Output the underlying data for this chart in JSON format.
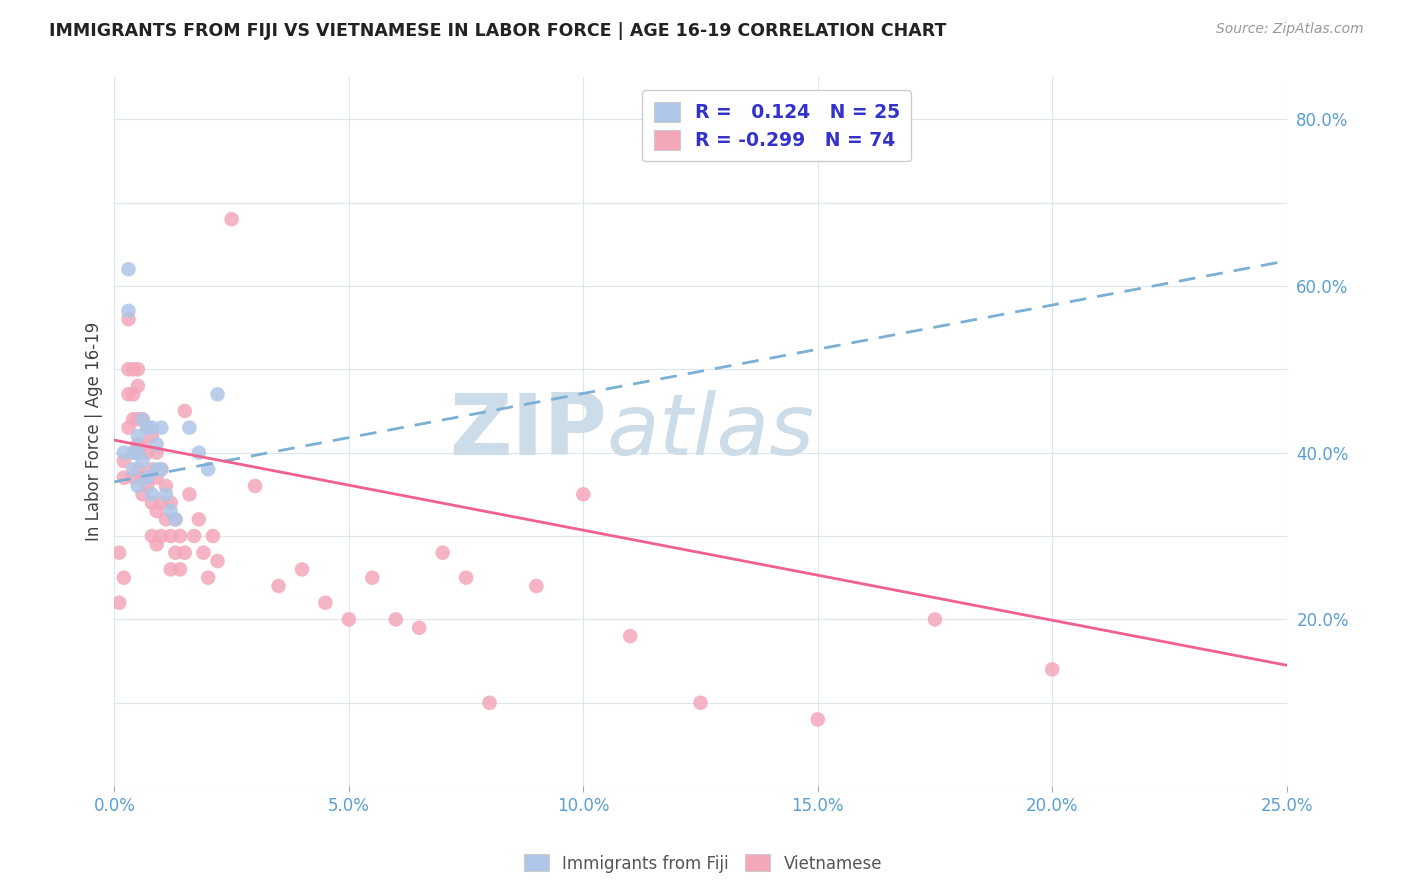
{
  "title": "IMMIGRANTS FROM FIJI VS VIETNAMESE IN LABOR FORCE | AGE 16-19 CORRELATION CHART",
  "source": "Source: ZipAtlas.com",
  "ylabel": "In Labor Force | Age 16-19",
  "xlim": [
    0.0,
    0.25
  ],
  "ylim": [
    0.0,
    0.85
  ],
  "xticks": [
    0.0,
    0.05,
    0.1,
    0.15,
    0.2,
    0.25
  ],
  "xtick_labels": [
    "0.0%",
    "5.0%",
    "10.0%",
    "15.0%",
    "20.0%",
    "25.0%"
  ],
  "ytick_vals": [
    0.2,
    0.4,
    0.6,
    0.8
  ],
  "ytick_labels": [
    "20.0%",
    "40.0%",
    "60.0%",
    "80.0%"
  ],
  "fiji_color": "#aec6e8",
  "viet_color": "#f4a7b9",
  "fiji_line_color": "#7bafd4",
  "viet_line_color": "#f06090",
  "fiji_R": 0.124,
  "fiji_N": 25,
  "viet_R": -0.299,
  "viet_N": 74,
  "watermark_color": "#ccdce8",
  "fiji_scatter_x": [
    0.002,
    0.003,
    0.003,
    0.004,
    0.004,
    0.005,
    0.005,
    0.005,
    0.006,
    0.006,
    0.007,
    0.007,
    0.008,
    0.008,
    0.009,
    0.009,
    0.01,
    0.01,
    0.011,
    0.012,
    0.013,
    0.016,
    0.018,
    0.02,
    0.022
  ],
  "fiji_scatter_y": [
    0.4,
    0.62,
    0.57,
    0.4,
    0.38,
    0.42,
    0.4,
    0.36,
    0.44,
    0.39,
    0.43,
    0.37,
    0.35,
    0.43,
    0.41,
    0.38,
    0.43,
    0.38,
    0.35,
    0.33,
    0.32,
    0.43,
    0.4,
    0.38,
    0.47
  ],
  "viet_scatter_x": [
    0.001,
    0.001,
    0.002,
    0.002,
    0.002,
    0.003,
    0.003,
    0.003,
    0.003,
    0.004,
    0.004,
    0.004,
    0.004,
    0.004,
    0.005,
    0.005,
    0.005,
    0.005,
    0.005,
    0.006,
    0.006,
    0.006,
    0.006,
    0.007,
    0.007,
    0.007,
    0.008,
    0.008,
    0.008,
    0.008,
    0.009,
    0.009,
    0.009,
    0.009,
    0.01,
    0.01,
    0.01,
    0.011,
    0.011,
    0.012,
    0.012,
    0.012,
    0.013,
    0.013,
    0.014,
    0.014,
    0.015,
    0.015,
    0.016,
    0.017,
    0.018,
    0.019,
    0.02,
    0.021,
    0.022,
    0.025,
    0.03,
    0.035,
    0.04,
    0.045,
    0.05,
    0.055,
    0.06,
    0.065,
    0.07,
    0.075,
    0.08,
    0.09,
    0.1,
    0.11,
    0.125,
    0.15,
    0.175,
    0.2
  ],
  "viet_scatter_y": [
    0.28,
    0.22,
    0.39,
    0.37,
    0.25,
    0.56,
    0.5,
    0.47,
    0.43,
    0.5,
    0.47,
    0.44,
    0.4,
    0.37,
    0.5,
    0.48,
    0.44,
    0.41,
    0.38,
    0.44,
    0.41,
    0.37,
    0.35,
    0.43,
    0.4,
    0.36,
    0.42,
    0.38,
    0.34,
    0.3,
    0.4,
    0.37,
    0.33,
    0.29,
    0.38,
    0.34,
    0.3,
    0.36,
    0.32,
    0.34,
    0.3,
    0.26,
    0.32,
    0.28,
    0.3,
    0.26,
    0.45,
    0.28,
    0.35,
    0.3,
    0.32,
    0.28,
    0.25,
    0.3,
    0.27,
    0.68,
    0.36,
    0.24,
    0.26,
    0.22,
    0.2,
    0.25,
    0.2,
    0.19,
    0.28,
    0.25,
    0.1,
    0.24,
    0.35,
    0.18,
    0.1,
    0.08,
    0.2,
    0.14
  ],
  "fiji_trend_x": [
    0.0,
    0.25
  ],
  "fiji_trend_y": [
    0.365,
    0.63
  ],
  "viet_trend_x": [
    0.0,
    0.25
  ],
  "viet_trend_y": [
    0.415,
    0.145
  ]
}
